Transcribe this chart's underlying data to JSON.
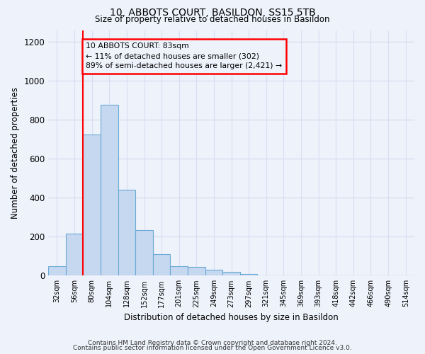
{
  "title_line1": "10, ABBOTS COURT, BASILDON, SS15 5TB",
  "title_line2": "Size of property relative to detached houses in Basildon",
  "xlabel": "Distribution of detached houses by size in Basildon",
  "ylabel": "Number of detached properties",
  "categories": [
    "32sqm",
    "56sqm",
    "80sqm",
    "104sqm",
    "128sqm",
    "152sqm",
    "177sqm",
    "201sqm",
    "225sqm",
    "249sqm",
    "273sqm",
    "297sqm",
    "321sqm",
    "345sqm",
    "369sqm",
    "393sqm",
    "418sqm",
    "442sqm",
    "466sqm",
    "490sqm",
    "514sqm"
  ],
  "values": [
    50,
    215,
    725,
    875,
    440,
    235,
    110,
    50,
    45,
    30,
    20,
    10,
    0,
    0,
    0,
    0,
    0,
    0,
    0,
    0,
    0
  ],
  "bar_color": "#c5d8f0",
  "bar_edge_color": "#6aaad4",
  "annotation_line1": "10 ABBOTS COURT: 83sqm",
  "annotation_line2": "← 11% of detached houses are smaller (302)",
  "annotation_line3": "89% of semi-detached houses are larger (2,421) →",
  "vline_x_index": 1.5,
  "ylim": [
    0,
    1260
  ],
  "yticks": [
    0,
    200,
    400,
    600,
    800,
    1000,
    1200
  ],
  "background_color": "#eef2fb",
  "grid_color": "#d8dff0",
  "footer_line1": "Contains HM Land Registry data © Crown copyright and database right 2024.",
  "footer_line2": "Contains public sector information licensed under the Open Government Licence v3.0."
}
